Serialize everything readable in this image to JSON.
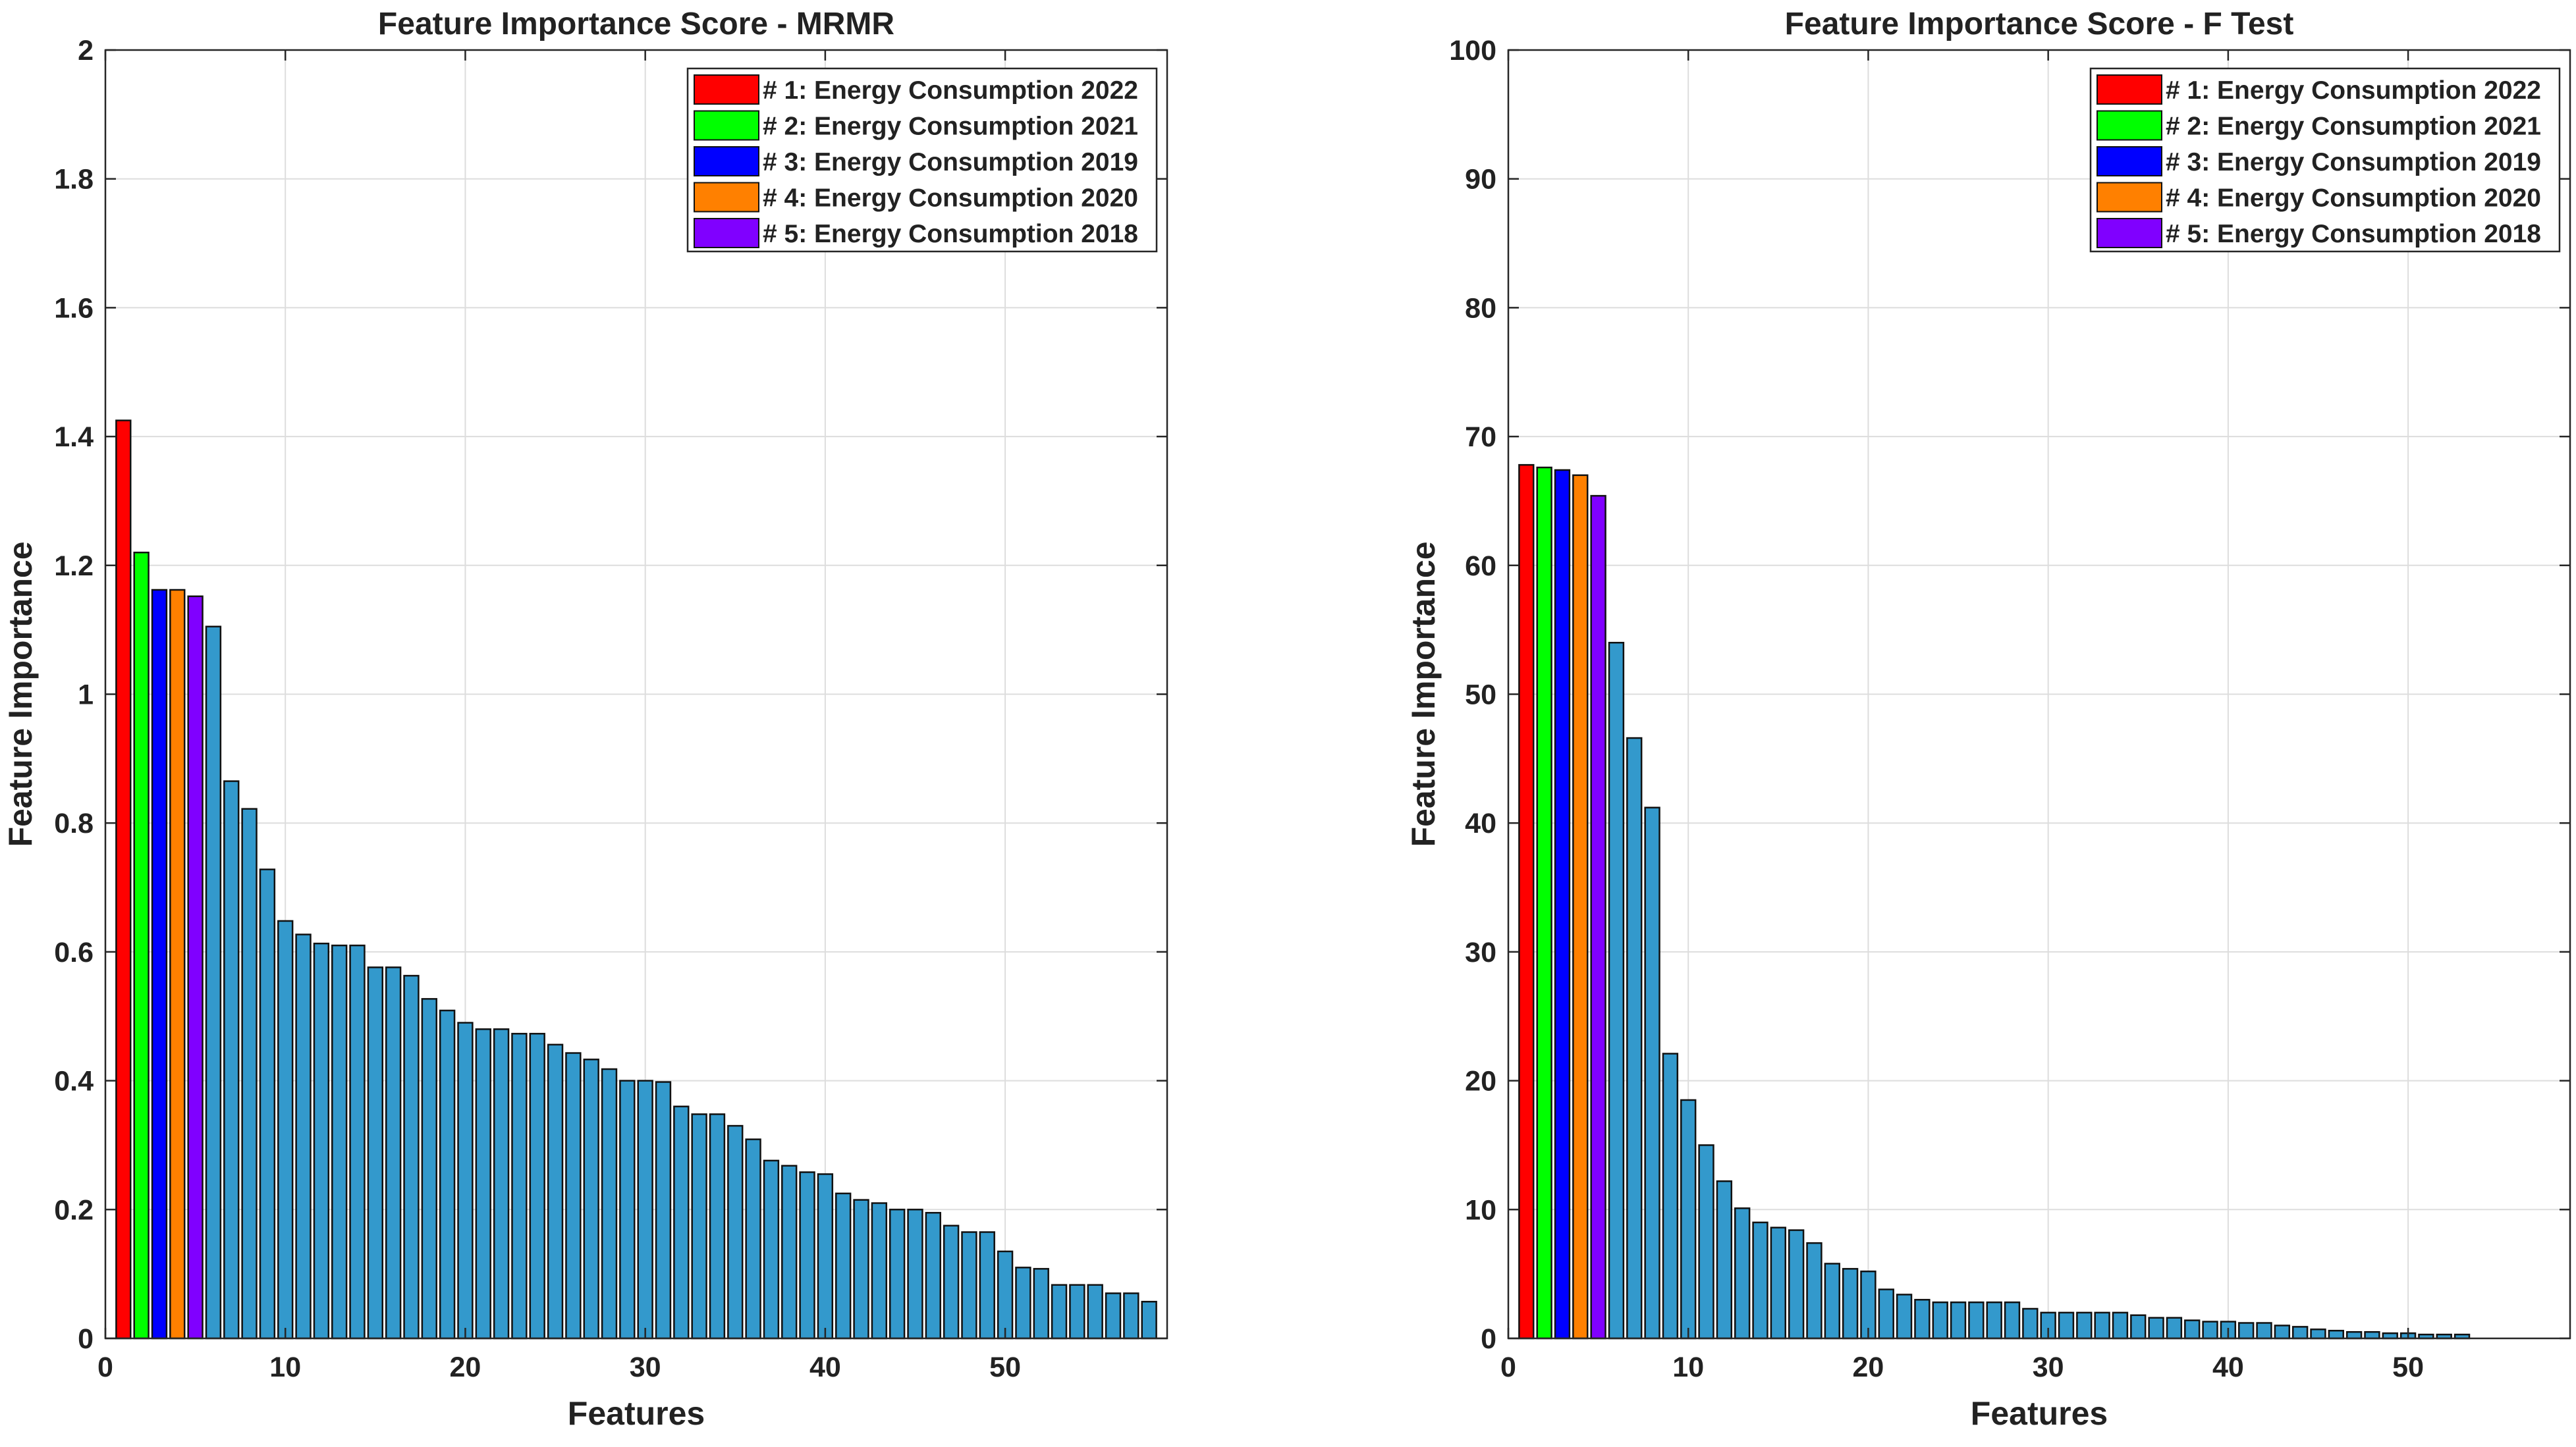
{
  "colors": {
    "default_bar": "#3399cc",
    "rank_colors": [
      "#ff0000",
      "#00ff00",
      "#0000ff",
      "#ff8000",
      "#8000ff"
    ]
  },
  "chart_data": [
    {
      "type": "bar",
      "title": "Feature Importance Score - MRMR",
      "xlabel": "Features",
      "ylabel": "Feature Importance",
      "xlim": [
        0,
        59
      ],
      "ylim": [
        0,
        2
      ],
      "xticks": [
        0,
        10,
        20,
        30,
        40,
        50
      ],
      "yticks": [
        0,
        0.2,
        0.4,
        0.6,
        0.8,
        1,
        1.2,
        1.4,
        1.6,
        1.8,
        2
      ],
      "ytick_labels": [
        "0",
        "0.2",
        "0.4",
        "0.6",
        "0.8",
        "1",
        "1.2",
        "1.4",
        "1.6",
        "1.8",
        "2"
      ],
      "grid": true,
      "legend_position": "top-right",
      "legend": [
        "# 1: Energy Consumption 2022",
        "# 2: Energy Consumption 2021",
        "# 3: Energy Consumption 2019",
        "# 4: Energy Consumption 2020",
        "# 5: Energy Consumption 2018"
      ],
      "values": [
        1.425,
        1.22,
        1.162,
        1.162,
        1.152,
        1.105,
        0.865,
        0.822,
        0.728,
        0.648,
        0.627,
        0.613,
        0.61,
        0.61,
        0.576,
        0.576,
        0.563,
        0.527,
        0.509,
        0.49,
        0.48,
        0.48,
        0.473,
        0.473,
        0.456,
        0.443,
        0.433,
        0.418,
        0.4,
        0.4,
        0.398,
        0.36,
        0.348,
        0.348,
        0.33,
        0.309,
        0.276,
        0.268,
        0.258,
        0.255,
        0.225,
        0.215,
        0.21,
        0.2,
        0.2,
        0.195,
        0.175,
        0.165,
        0.165,
        0.135,
        0.11,
        0.108,
        0.083,
        0.083,
        0.083,
        0.07,
        0.07,
        0.057
      ]
    },
    {
      "type": "bar",
      "title": "Feature Importance Score - F Test",
      "xlabel": "Features",
      "ylabel": "Feature Importance",
      "xlim": [
        0,
        59
      ],
      "ylim": [
        0,
        100
      ],
      "xticks": [
        0,
        10,
        20,
        30,
        40,
        50
      ],
      "yticks": [
        0,
        10,
        20,
        30,
        40,
        50,
        60,
        70,
        80,
        90,
        100
      ],
      "ytick_labels": [
        "0",
        "10",
        "20",
        "30",
        "40",
        "50",
        "60",
        "70",
        "80",
        "90",
        "100"
      ],
      "grid": true,
      "legend_position": "top-right",
      "legend": [
        "# 1: Energy Consumption 2022",
        "# 2: Energy Consumption 2021",
        "# 3: Energy Consumption 2019",
        "# 4: Energy Consumption 2020",
        "# 5: Energy Consumption 2018"
      ],
      "values": [
        67.8,
        67.6,
        67.4,
        67.0,
        65.4,
        54.0,
        46.6,
        41.2,
        22.1,
        18.5,
        15.0,
        12.2,
        10.1,
        9.0,
        8.6,
        8.4,
        7.4,
        5.8,
        5.4,
        5.2,
        3.8,
        3.4,
        3.0,
        2.8,
        2.8,
        2.8,
        2.8,
        2.8,
        2.3,
        2.0,
        2.0,
        2.0,
        2.0,
        2.0,
        1.8,
        1.6,
        1.6,
        1.4,
        1.3,
        1.3,
        1.2,
        1.2,
        1.0,
        0.9,
        0.7,
        0.6,
        0.5,
        0.5,
        0.4,
        0.4,
        0.3,
        0.3,
        0.3
      ]
    }
  ]
}
